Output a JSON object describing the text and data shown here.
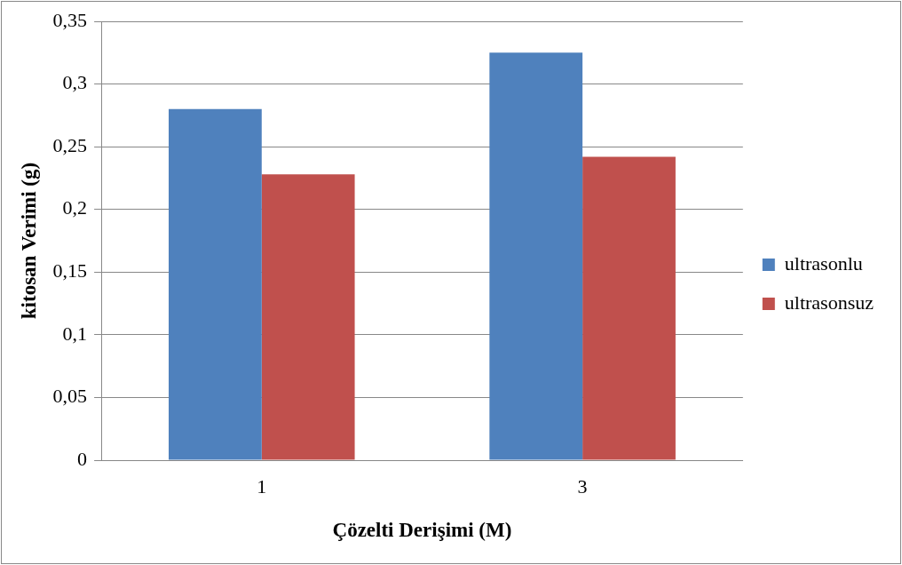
{
  "chart_data": {
    "type": "bar",
    "xlabel": "Çözelti Derişimi (M)",
    "ylabel": "kitosan Verimi (g)",
    "categories": [
      "1",
      "3"
    ],
    "series": [
      {
        "name": "ultrasonlu",
        "color": "#4f81bd",
        "values": [
          0.28,
          0.325
        ]
      },
      {
        "name": "ultrasonsuz",
        "color": "#c0504d",
        "values": [
          0.228,
          0.242
        ]
      }
    ],
    "ylim": [
      0,
      0.35
    ],
    "yticks": [
      0,
      {
        "value": 0.05,
        "label": "0,05"
      },
      {
        "value": 0.1,
        "label": "0,1"
      },
      {
        "value": 0.15,
        "label": "0,15"
      },
      {
        "value": 0.2,
        "label": "0,2"
      },
      {
        "value": 0.25,
        "label": "0,25"
      },
      {
        "value": 0.3,
        "label": "0,3"
      },
      {
        "value": 0.35,
        "label": "0,35"
      }
    ],
    "grid": "y",
    "legend": "right"
  }
}
